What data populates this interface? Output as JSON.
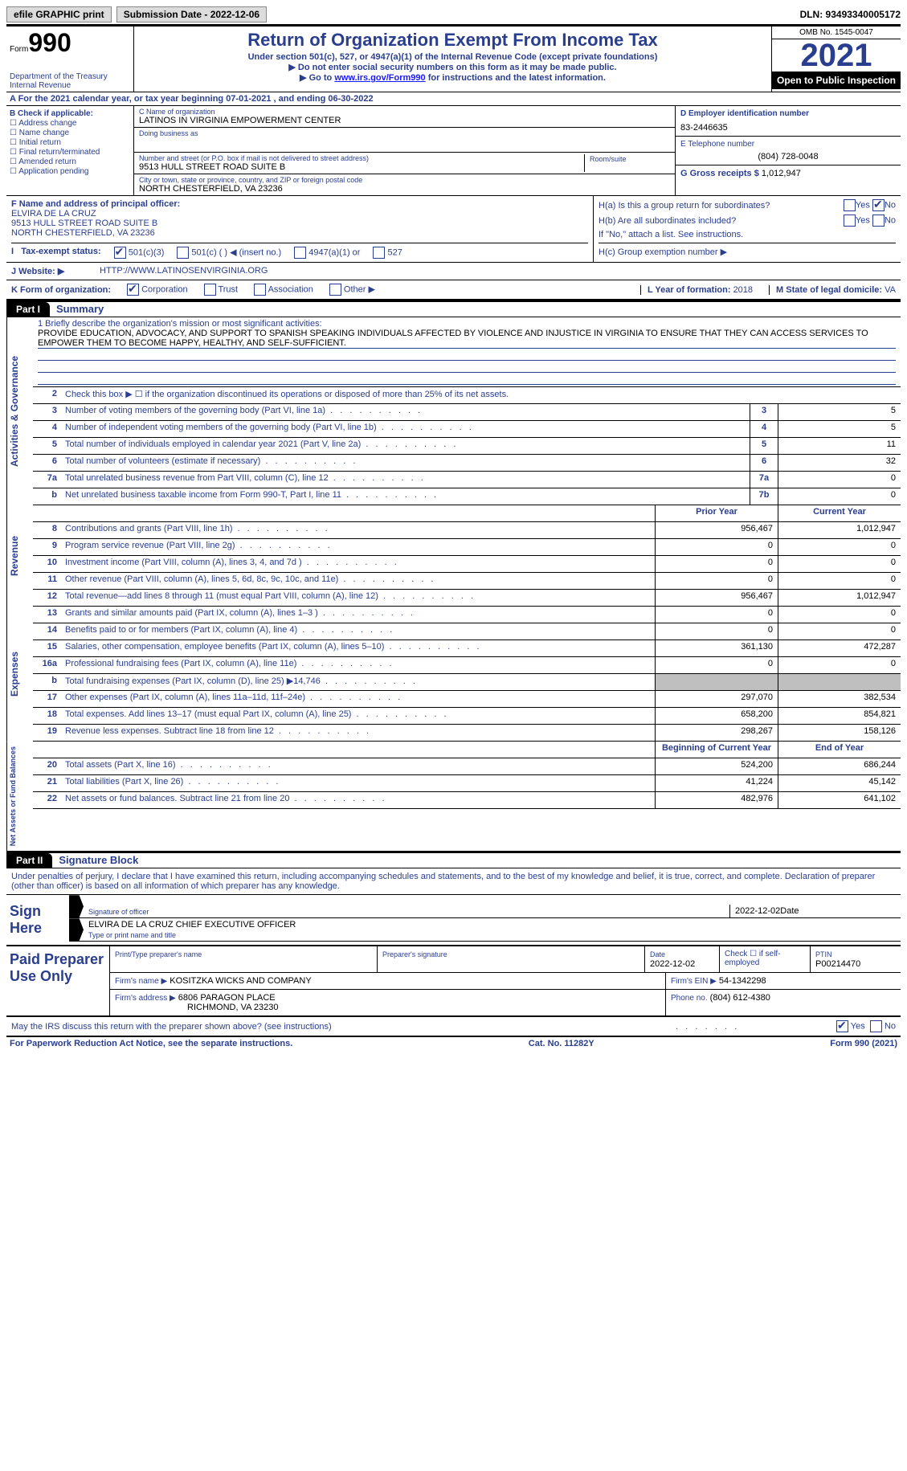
{
  "top": {
    "efile_label": "efile GRAPHIC print",
    "submission_label": "Submission Date - 2022-12-06",
    "dln": "DLN: 93493340005172"
  },
  "header": {
    "form_prefix": "Form",
    "form_number": "990",
    "dept": "Department of the Treasury\nInternal Revenue",
    "title": "Return of Organization Exempt From Income Tax",
    "subtitle": "Under section 501(c), 527, or 4947(a)(1) of the Internal Revenue Code (except private foundations)",
    "note1": "▶ Do not enter social security numbers on this form as it may be made public.",
    "note2_prefix": "▶ Go to ",
    "note2_link": "www.irs.gov/Form990",
    "note2_suffix": " for instructions and the latest information.",
    "omb": "OMB No. 1545-0047",
    "year": "2021",
    "inspect": "Open to Public Inspection"
  },
  "row_a": "A For the 2021 calendar year, or tax year beginning 07-01-2021    , and ending 06-30-2022",
  "col_b": {
    "label": "B Check if applicable:",
    "opts": [
      "Address change",
      "Name change",
      "Initial return",
      "Final return/terminated",
      "Amended return",
      "Application pending"
    ]
  },
  "col_c": {
    "name_lbl": "C Name of organization",
    "name": "LATINOS IN VIRGINIA EMPOWERMENT CENTER",
    "dba_lbl": "Doing business as",
    "street_lbl": "Number and street (or P.O. box if mail is not delivered to street address)",
    "room_lbl": "Room/suite",
    "street": "9513 HULL STREET ROAD SUITE B",
    "city_lbl": "City or town, state or province, country, and ZIP or foreign postal code",
    "city": "NORTH CHESTERFIELD, VA  23236"
  },
  "col_d": {
    "ein_lbl": "D Employer identification number",
    "ein": "83-2446635",
    "tel_lbl": "E Telephone number",
    "tel": "(804) 728-0048",
    "gross_lbl": "G Gross receipts $",
    "gross": "1,012,947"
  },
  "block_f": {
    "lbl": "F Name and address of principal officer:",
    "name": "ELVIRA DE LA CRUZ",
    "addr1": "9513 HULL STREET ROAD SUITE B",
    "addr2": "NORTH CHESTERFIELD, VA  23236"
  },
  "block_h": {
    "a": "H(a)  Is this a group return for subordinates?",
    "b": "H(b)  Are all subordinates included?",
    "note": "If \"No,\" attach a list. See instructions.",
    "c": "H(c)  Group exemption number ▶",
    "yes": "Yes",
    "no": "No"
  },
  "status": {
    "lbl": "Tax-exempt status:",
    "o1": "501(c)(3)",
    "o2": "501(c) (   ) ◀ (insert no.)",
    "o3": "4947(a)(1) or",
    "o4": "527"
  },
  "row_j": {
    "lbl": "J    Website: ▶",
    "val": "HTTP://WWW.LATINOSENVIRGINIA.ORG"
  },
  "row_k": {
    "lbl": "K Form of organization:",
    "o1": "Corporation",
    "o2": "Trust",
    "o3": "Association",
    "o4": "Other ▶",
    "l_lbl": "L Year of formation:",
    "l_val": "2018",
    "m_lbl": "M State of legal domicile:",
    "m_val": "VA"
  },
  "part1": {
    "hdr": "Part I",
    "title": "Summary"
  },
  "summary": {
    "side_labels": [
      "Activities & Governance",
      "Revenue",
      "Expenses",
      "Net Assets or Fund Balances"
    ],
    "mission_lbl": "1  Briefly describe the organization's mission or most significant activities:",
    "mission": "PROVIDE EDUCATION, ADVOCACY, AND SUPPORT TO SPANISH SPEAKING INDIVIDUALS AFFECTED BY VIOLENCE AND INJUSTICE IN VIRGINIA TO ENSURE THAT THEY CAN ACCESS SERVICES TO EMPOWER THEM TO BECOME HAPPY, HEALTHY, AND SELF-SUFFICIENT.",
    "line2": "Check this box ▶ ☐  if the organization discontinued its operations or disposed of more than 25% of its net assets.",
    "rows_a": [
      {
        "n": "3",
        "d": "Number of voting members of the governing body (Part VI, line 1a)",
        "box": "3",
        "v": "5"
      },
      {
        "n": "4",
        "d": "Number of independent voting members of the governing body (Part VI, line 1b)",
        "box": "4",
        "v": "5"
      },
      {
        "n": "5",
        "d": "Total number of individuals employed in calendar year 2021 (Part V, line 2a)",
        "box": "5",
        "v": "11"
      },
      {
        "n": "6",
        "d": "Total number of volunteers (estimate if necessary)",
        "box": "6",
        "v": "32"
      },
      {
        "n": "7a",
        "d": "Total unrelated business revenue from Part VIII, column (C), line 12",
        "box": "7a",
        "v": "0"
      },
      {
        "n": "b",
        "d": "Net unrelated business taxable income from Form 990-T, Part I, line 11",
        "box": "7b",
        "v": "0"
      }
    ],
    "hdr1": "Prior Year",
    "hdr2": "Current Year",
    "rows_r": [
      {
        "n": "8",
        "d": "Contributions and grants (Part VIII, line 1h)",
        "p": "956,467",
        "c": "1,012,947"
      },
      {
        "n": "9",
        "d": "Program service revenue (Part VIII, line 2g)",
        "p": "0",
        "c": "0"
      },
      {
        "n": "10",
        "d": "Investment income (Part VIII, column (A), lines 3, 4, and 7d )",
        "p": "0",
        "c": "0"
      },
      {
        "n": "11",
        "d": "Other revenue (Part VIII, column (A), lines 5, 6d, 8c, 9c, 10c, and 11e)",
        "p": "0",
        "c": "0"
      },
      {
        "n": "12",
        "d": "Total revenue—add lines 8 through 11 (must equal Part VIII, column (A), line 12)",
        "p": "956,467",
        "c": "1,012,947"
      }
    ],
    "rows_e": [
      {
        "n": "13",
        "d": "Grants and similar amounts paid (Part IX, column (A), lines 1–3 )",
        "p": "0",
        "c": "0"
      },
      {
        "n": "14",
        "d": "Benefits paid to or for members (Part IX, column (A), line 4)",
        "p": "0",
        "c": "0"
      },
      {
        "n": "15",
        "d": "Salaries, other compensation, employee benefits (Part IX, column (A), lines 5–10)",
        "p": "361,130",
        "c": "472,287"
      },
      {
        "n": "16a",
        "d": "Professional fundraising fees (Part IX, column (A), line 11e)",
        "p": "0",
        "c": "0"
      },
      {
        "n": "b",
        "d": "Total fundraising expenses (Part IX, column (D), line 25) ▶14,746",
        "p": "",
        "c": "",
        "gray": true
      },
      {
        "n": "17",
        "d": "Other expenses (Part IX, column (A), lines 11a–11d, 11f–24e)",
        "p": "297,070",
        "c": "382,534"
      },
      {
        "n": "18",
        "d": "Total expenses. Add lines 13–17 (must equal Part IX, column (A), line 25)",
        "p": "658,200",
        "c": "854,821"
      },
      {
        "n": "19",
        "d": "Revenue less expenses. Subtract line 18 from line 12",
        "p": "298,267",
        "c": "158,126"
      }
    ],
    "hdr3": "Beginning of Current Year",
    "hdr4": "End of Year",
    "rows_n": [
      {
        "n": "20",
        "d": "Total assets (Part X, line 16)",
        "p": "524,200",
        "c": "686,244"
      },
      {
        "n": "21",
        "d": "Total liabilities (Part X, line 26)",
        "p": "41,224",
        "c": "45,142"
      },
      {
        "n": "22",
        "d": "Net assets or fund balances. Subtract line 21 from line 20",
        "p": "482,976",
        "c": "641,102"
      }
    ]
  },
  "part2": {
    "hdr": "Part II",
    "title": "Signature Block"
  },
  "declare": "Under penalties of perjury, I declare that I have examined this return, including accompanying schedules and statements, and to the best of my knowledge and belief, it is true, correct, and complete. Declaration of preparer (other than officer) is based on all information of which preparer has any knowledge.",
  "sign": {
    "left": "Sign Here",
    "sig_lbl": "Signature of officer",
    "date": "2022-12-02",
    "date_lbl": "Date",
    "name": "ELVIRA DE LA CRUZ  CHIEF EXECUTIVE OFFICER",
    "name_lbl": "Type or print name and title"
  },
  "prep": {
    "left": "Paid Preparer Use Only",
    "r1": {
      "c1_lbl": "Print/Type preparer's name",
      "c2_lbl": "Preparer's signature",
      "c3_lbl": "Date",
      "c3": "2022-12-02",
      "c4": "Check ☐ if self-employed",
      "c5_lbl": "PTIN",
      "c5": "P00214470"
    },
    "r2": {
      "c1_lbl": "Firm's name    ▶",
      "c1": "KOSITZKA WICKS AND COMPANY",
      "c2_lbl": "Firm's EIN ▶",
      "c2": "54-1342298"
    },
    "r3": {
      "c1_lbl": "Firm's address ▶",
      "c1": "6806 PARAGON PLACE",
      "c1b": "RICHMOND, VA  23230",
      "c2_lbl": "Phone no.",
      "c2": "(804) 612-4380"
    }
  },
  "footer_q": "May the IRS discuss this return with the preparer shown above? (see instructions)",
  "footer_yes": "Yes",
  "footer_no": "No",
  "footer_note1": "For Paperwork Reduction Act Notice, see the separate instructions.",
  "footer_note2": "Cat. No. 11282Y",
  "footer_note3": "Form 990 (2021)"
}
